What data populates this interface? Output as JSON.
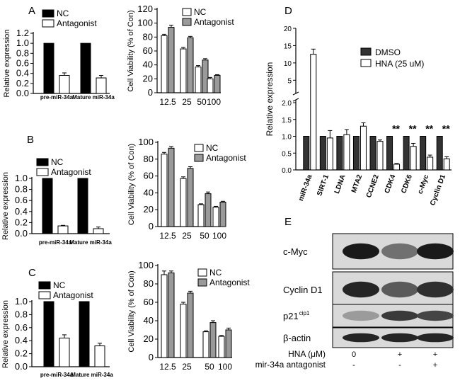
{
  "colors": {
    "black": "#000000",
    "white": "#ffffff",
    "gray": "#9a9a9a",
    "dark": "#333333",
    "blot_bg": "#d9d9d9"
  },
  "panel_letters": {
    "A": "A",
    "B": "B",
    "C": "C",
    "D": "D",
    "E": "E"
  },
  "chart_data": [
    {
      "id": "A_expr",
      "type": "bar",
      "panel": "A",
      "ylabel": "Relative expression",
      "ylim": [
        0,
        1.2
      ],
      "ticks": [
        "0.0",
        "0.2",
        "0.4",
        "0.6",
        "0.8",
        "1.0",
        "1.2"
      ],
      "categories": [
        "pre-miR-34a",
        "Mature miR-34a"
      ],
      "series": [
        {
          "name": "NC",
          "values": [
            1.0,
            1.0
          ],
          "errors": [
            0,
            0
          ],
          "fill": "black"
        },
        {
          "name": "Antagonist",
          "values": [
            0.36,
            0.31
          ],
          "errors": [
            0.05,
            0.05
          ],
          "fill": "white"
        }
      ]
    },
    {
      "id": "A_via",
      "type": "bar",
      "panel": "A",
      "ylabel": "Cell Viability (% of Con)",
      "ylim": [
        0,
        120
      ],
      "ticks": [
        "0",
        "20",
        "40",
        "60",
        "80",
        "100",
        "120"
      ],
      "categories": [
        "12.5",
        "25",
        "50",
        "100"
      ],
      "series": [
        {
          "name": "NC",
          "values": [
            82,
            63,
            37,
            20
          ],
          "errors": [
            2,
            2,
            2,
            2
          ],
          "fill": "white"
        },
        {
          "name": "Antagonist",
          "values": [
            94,
            79,
            47,
            25
          ],
          "errors": [
            3,
            2,
            2,
            1
          ],
          "fill": "gray"
        }
      ]
    },
    {
      "id": "B_expr",
      "type": "bar",
      "panel": "B",
      "ylabel": "Relative expression",
      "ylim": [
        0,
        1.0
      ],
      "ticks": [
        "0.0",
        "0.2",
        "0.4",
        "0.6",
        "0.8",
        "1.0"
      ],
      "categories": [
        "pre-miR-34a",
        "Mature miR-34a"
      ],
      "series": [
        {
          "name": "NC",
          "values": [
            1.0,
            1.0
          ],
          "errors": [
            0,
            0
          ],
          "fill": "black"
        },
        {
          "name": "Antagonist",
          "values": [
            0.14,
            0.09
          ],
          "errors": [
            0.01,
            0.03
          ],
          "fill": "white"
        }
      ]
    },
    {
      "id": "B_via",
      "type": "bar",
      "panel": "B",
      "ylabel": "Cell Viability (% of Con)",
      "ylim": [
        0,
        100
      ],
      "ticks": [
        "0",
        "20",
        "40",
        "60",
        "80",
        "100"
      ],
      "categories": [
        "12.5",
        "25",
        "50",
        "100"
      ],
      "series": [
        {
          "name": "NC",
          "values": [
            86,
            57,
            26,
            23
          ],
          "errors": [
            2,
            2,
            1,
            1
          ],
          "fill": "white"
        },
        {
          "name": "Antagonist",
          "values": [
            93,
            69,
            39,
            29
          ],
          "errors": [
            2,
            2,
            2,
            1
          ],
          "fill": "gray"
        }
      ]
    },
    {
      "id": "C_expr",
      "type": "bar",
      "panel": "C",
      "ylabel": "Relative expression",
      "ylim": [
        0,
        1.0
      ],
      "ticks": [
        "0.0",
        "0.2",
        "0.4",
        "0.6",
        "0.8",
        "1.0"
      ],
      "categories": [
        "pre-miR-34a",
        "Mature miR-34a"
      ],
      "series": [
        {
          "name": "NC",
          "values": [
            1.0,
            1.0
          ],
          "errors": [
            0,
            0
          ],
          "fill": "black"
        },
        {
          "name": "Antagonist",
          "values": [
            0.44,
            0.32
          ],
          "errors": [
            0.05,
            0.04
          ],
          "fill": "white"
        }
      ]
    },
    {
      "id": "C_via",
      "type": "bar",
      "panel": "C",
      "ylabel": "Cell Viability (% of Con)",
      "ylim": [
        0,
        100
      ],
      "ticks": [
        "0",
        "20",
        "40",
        "60",
        "80",
        "100"
      ],
      "categories": [
        "12.5",
        "25",
        "50",
        "100"
      ],
      "series": [
        {
          "name": "NC",
          "values": [
            90,
            58,
            28,
            23
          ],
          "errors": [
            4,
            2,
            1,
            1
          ],
          "fill": "white"
        },
        {
          "name": "Antagonist",
          "values": [
            92,
            70,
            38,
            30
          ],
          "errors": [
            2,
            2,
            2,
            2
          ],
          "fill": "gray"
        }
      ]
    },
    {
      "id": "D",
      "type": "bar",
      "panel": "D",
      "ylabel": "Relative expression",
      "axis_break": true,
      "ticks": [
        "0.0",
        "0.5",
        "1.0",
        "1.5",
        "2.0",
        "5",
        "10",
        "15",
        "20"
      ],
      "ylim_lower": [
        0,
        2.0
      ],
      "ylim_upper": [
        2,
        20
      ],
      "categories": [
        "miR-34a",
        "SIRT-1",
        "LDNA",
        "MTA2",
        "CCNE2",
        "CDK4",
        "CDK6",
        "c-Myc",
        "Cyclin D1"
      ],
      "series": [
        {
          "name": "DMSO",
          "values": [
            1.0,
            1.0,
            1.0,
            1.0,
            1.0,
            1.0,
            1.0,
            1.0,
            1.0
          ],
          "errors": [
            0,
            0,
            0,
            0,
            0,
            0,
            0,
            0,
            0
          ],
          "fill": "dark"
        },
        {
          "name": "HNA (25 uM)",
          "values": [
            12.5,
            0.95,
            1.05,
            1.3,
            0.85,
            0.17,
            0.7,
            0.38,
            0.33
          ],
          "errors": [
            1.5,
            0.22,
            0.15,
            0.1,
            0.04,
            0.02,
            0.09,
            0.06,
            0.06
          ],
          "fill": "white"
        }
      ],
      "annotations": [
        "",
        "",
        "",
        "",
        "",
        "**",
        "**",
        "**",
        "**"
      ]
    }
  ],
  "blot": {
    "panel": "E",
    "rows": [
      {
        "label": "c-Myc",
        "sup": "",
        "bands": [
          0.95,
          0.55,
          0.95
        ]
      },
      {
        "label": "Cyclin D1",
        "sup": "",
        "bands": [
          0.9,
          0.65,
          0.85
        ]
      },
      {
        "label": "p21",
        "sup": "cip1",
        "bands": [
          0.35,
          0.8,
          0.75
        ]
      },
      {
        "label": "β-actin",
        "sup": "",
        "bands": [
          0.9,
          0.9,
          0.9
        ]
      }
    ],
    "condition_rows": [
      {
        "label": "HNA (μM)",
        "values": [
          "0",
          "+",
          "+"
        ]
      },
      {
        "label": "mir-34a antagonist",
        "values": [
          "-",
          "-",
          "+"
        ]
      }
    ]
  }
}
